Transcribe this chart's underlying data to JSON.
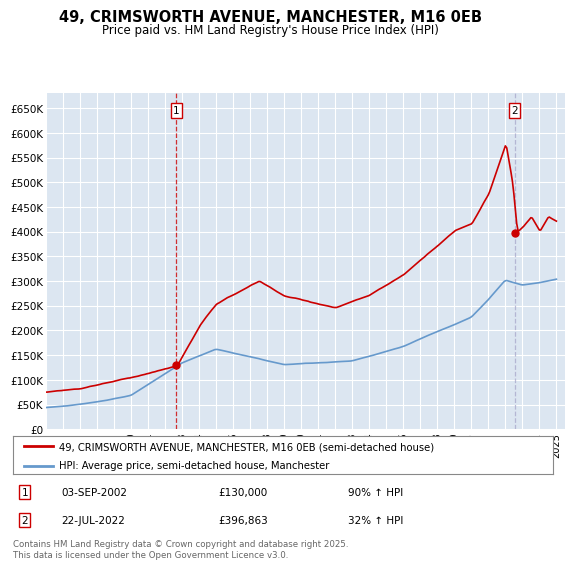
{
  "title": "49, CRIMSWORTH AVENUE, MANCHESTER, M16 0EB",
  "subtitle": "Price paid vs. HM Land Registry's House Price Index (HPI)",
  "ylim": [
    0,
    680000
  ],
  "yticks": [
    0,
    50000,
    100000,
    150000,
    200000,
    250000,
    300000,
    350000,
    400000,
    450000,
    500000,
    550000,
    600000,
    650000
  ],
  "ytick_labels": [
    "£0",
    "£50K",
    "£100K",
    "£150K",
    "£200K",
    "£250K",
    "£300K",
    "£350K",
    "£400K",
    "£450K",
    "£500K",
    "£550K",
    "£600K",
    "£650K"
  ],
  "xlim_start": 1995.0,
  "xlim_end": 2025.5,
  "plot_bg_color": "#dce6f1",
  "grid_color": "#ffffff",
  "red_line_color": "#cc0000",
  "blue_line_color": "#6699cc",
  "sale1_x": 2002.67,
  "sale1_y": 130000,
  "sale1_label": "1",
  "sale2_x": 2022.55,
  "sale2_y": 396863,
  "sale2_label": "2",
  "legend_line1": "49, CRIMSWORTH AVENUE, MANCHESTER, M16 0EB (semi-detached house)",
  "legend_line2": "HPI: Average price, semi-detached house, Manchester",
  "annot1_date": "03-SEP-2002",
  "annot1_price": "£130,000",
  "annot1_hpi": "90% ↑ HPI",
  "annot2_date": "22-JUL-2022",
  "annot2_price": "£396,863",
  "annot2_hpi": "32% ↑ HPI",
  "footer": "Contains HM Land Registry data © Crown copyright and database right 2025.\nThis data is licensed under the Open Government Licence v3.0."
}
